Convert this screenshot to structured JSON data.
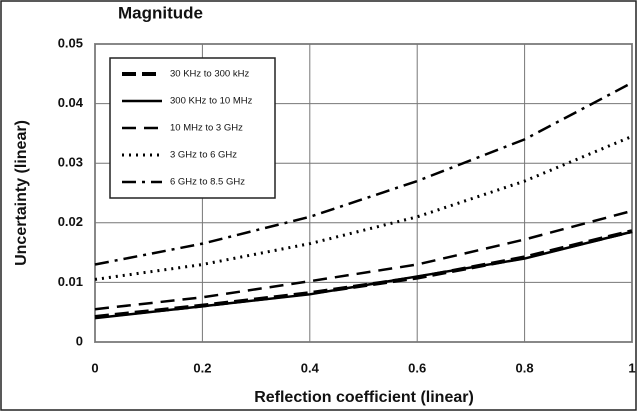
{
  "chart_data": {
    "type": "line",
    "title": "Magnitude",
    "x_label": "Reflection coefficient (linear)",
    "y_label": "Uncertainty (linear)",
    "x": [
      0,
      0.2,
      0.4,
      0.6,
      0.8,
      1
    ],
    "series": [
      {
        "name": "30 KHz to 300 kHz",
        "color": "#000000",
        "style": "thick-dash",
        "values": [
          0.0042,
          0.0061,
          0.0082,
          0.0108,
          0.0142,
          0.0186
        ]
      },
      {
        "name": "300 KHz to 10 MHz",
        "color": "#000000",
        "style": "solid",
        "values": [
          0.004,
          0.006,
          0.008,
          0.011,
          0.014,
          0.0185
        ]
      },
      {
        "name": "10 MHz to 3 GHz",
        "color": "#000000",
        "style": "dash",
        "values": [
          0.0055,
          0.0075,
          0.0102,
          0.013,
          0.0172,
          0.022
        ]
      },
      {
        "name": "3 GHz to 6 GHz",
        "color": "#000000",
        "style": "dot",
        "values": [
          0.0105,
          0.013,
          0.0165,
          0.021,
          0.027,
          0.0345
        ]
      },
      {
        "name": "6 GHz to 8.5 GHz",
        "color": "#000000",
        "style": "dash-dot",
        "values": [
          0.013,
          0.0165,
          0.021,
          0.027,
          0.034,
          0.0435
        ]
      }
    ],
    "xlim": [
      0,
      1
    ],
    "xticks": [
      0,
      0.2,
      0.4,
      0.6,
      0.8,
      1
    ],
    "ylim": [
      0,
      0.05
    ],
    "yticks": [
      0,
      0.01,
      0.02,
      0.03,
      0.04,
      0.05
    ],
    "grid": true,
    "legend": "upper-left"
  }
}
